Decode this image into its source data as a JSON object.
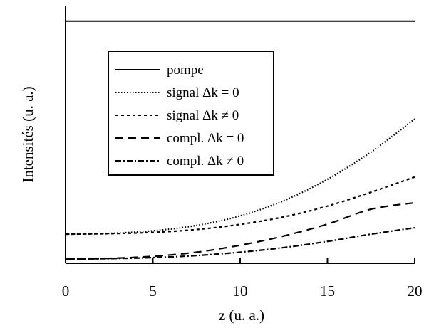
{
  "chart_data": {
    "type": "line",
    "xlabel": "z (u. a.)",
    "ylabel": "Intensités (u. a.)",
    "xlim": [
      0,
      20
    ],
    "ylim": [
      0,
      1
    ],
    "y_ticks_shown": false,
    "grid": false,
    "legend_placement": "upper-left",
    "x_ticks": [
      "0",
      "5",
      "10",
      "15",
      "20"
    ],
    "x_tick_values": [
      0,
      5,
      10,
      15,
      20
    ],
    "x": [
      0,
      2.5,
      5,
      7.5,
      10,
      12.5,
      15,
      17.5,
      20
    ],
    "series": [
      {
        "name": "pompe",
        "dash": "solid",
        "values": [
          0.94,
          0.94,
          0.94,
          0.94,
          0.94,
          0.94,
          0.94,
          0.94,
          0.94
        ]
      },
      {
        "name": "signal Δk = 0",
        "dash": "dotted",
        "values": [
          0.113,
          0.116,
          0.126,
          0.147,
          0.184,
          0.243,
          0.326,
          0.432,
          0.56
        ]
      },
      {
        "name": "signal Δk ≠ 0",
        "dash": "short-dash",
        "values": [
          0.113,
          0.115,
          0.12,
          0.131,
          0.151,
          0.18,
          0.222,
          0.276,
          0.335
        ]
      },
      {
        "name": "compl. Δk = 0",
        "dash": "long-dash",
        "values": [
          0.016,
          0.019,
          0.027,
          0.043,
          0.07,
          0.106,
          0.152,
          0.21,
          0.235
        ]
      },
      {
        "name": "compl. Δk ≠ 0",
        "dash": "dash-dot",
        "values": [
          0.016,
          0.018,
          0.022,
          0.03,
          0.043,
          0.061,
          0.085,
          0.113,
          0.138
        ]
      }
    ]
  }
}
